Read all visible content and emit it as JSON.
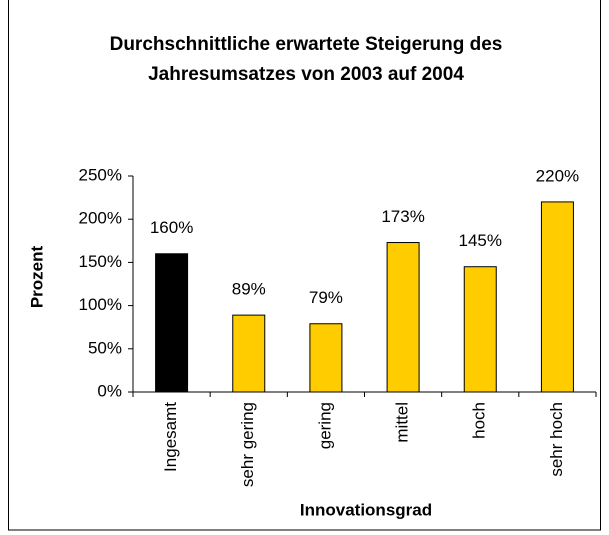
{
  "chart_data": {
    "type": "bar",
    "title": [
      "Durchschnittliche erwartete Steigerung des",
      "Jahresumsatzes von 2003 auf 2004"
    ],
    "x_label": "Innovationsgrad",
    "y_label": "Prozent",
    "categories": [
      "Ingesamt",
      "sehr gering",
      "gering",
      "mittel",
      "hoch",
      "sehr hoch"
    ],
    "values": [
      160,
      89,
      79,
      173,
      145,
      220
    ],
    "value_labels": [
      "160%",
      "89%",
      "79%",
      "173%",
      "145%",
      "220%"
    ],
    "colors": [
      "#000000",
      "#ffcc00",
      "#ffcc00",
      "#ffcc00",
      "#ffcc00",
      "#ffcc00"
    ],
    "ylim": [
      0,
      250
    ],
    "yticks": [
      {
        "value": 0,
        "label": "0%"
      },
      {
        "value": 50,
        "label": "50%"
      },
      {
        "value": 100,
        "label": "100%"
      },
      {
        "value": 150,
        "label": "150%"
      },
      {
        "value": 200,
        "label": "200%"
      },
      {
        "value": 250,
        "label": "250%"
      }
    ],
    "grid": false
  }
}
